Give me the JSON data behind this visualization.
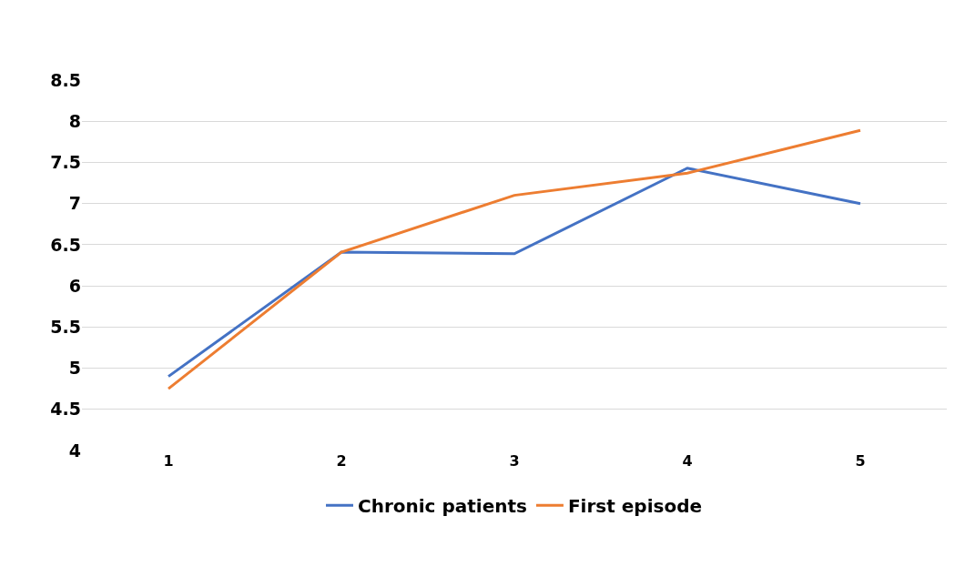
{
  "chart_data": {
    "type": "line",
    "categories": [
      "1",
      "2",
      "3",
      "4",
      "5"
    ],
    "series": [
      {
        "name": "Chronic patients",
        "color": "#4472c4",
        "values": [
          4.9,
          6.41,
          6.39,
          7.43,
          7.0
        ]
      },
      {
        "name": "First episode",
        "color": "#ed7d31",
        "values": [
          4.75,
          6.41,
          7.1,
          7.37,
          7.89
        ]
      }
    ],
    "ylim": [
      4,
      8.5
    ],
    "yticks": [
      4,
      4.5,
      5,
      5.5,
      6,
      6.5,
      7,
      7.5,
      8,
      8.5
    ],
    "grid": "y",
    "legend": "bottom",
    "marker": "none",
    "line_style": "solid"
  }
}
